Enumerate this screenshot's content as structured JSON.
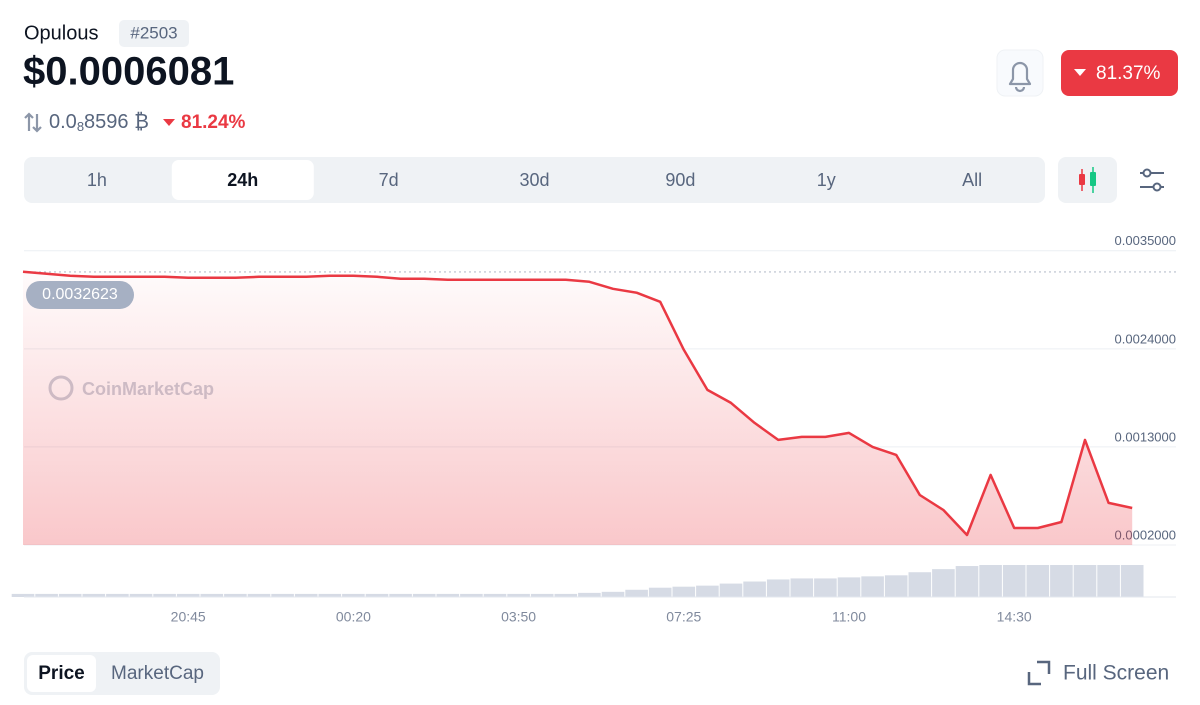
{
  "header": {
    "name": "Opulous",
    "rank": "#2503",
    "price": "$0.0006081",
    "btc_price": {
      "lead": "0.0",
      "zeros": "8",
      "digits": "8596",
      "unit": "₿"
    },
    "btc_change": "81.24%",
    "change_24h": "81.37%"
  },
  "tabs": [
    {
      "label": "1h",
      "active": false
    },
    {
      "label": "24h",
      "active": true
    },
    {
      "label": "7d",
      "active": false
    },
    {
      "label": "30d",
      "active": false
    },
    {
      "label": "90d",
      "active": false
    },
    {
      "label": "1y",
      "active": false
    },
    {
      "label": "All",
      "active": false
    }
  ],
  "chart_data": {
    "type": "line",
    "color": "#ea3943",
    "watermark": "CoinMarketCap",
    "categories": [
      null,
      null,
      null,
      null,
      null,
      null,
      null,
      "20:45",
      null,
      null,
      null,
      null,
      null,
      null,
      "00:20",
      null,
      null,
      null,
      null,
      null,
      null,
      "03:50",
      null,
      null,
      null,
      null,
      null,
      null,
      "07:25",
      null,
      null,
      null,
      null,
      null,
      null,
      "11:00",
      null,
      null,
      null,
      null,
      null,
      null,
      "14:30",
      null,
      null,
      null,
      null,
      null
    ],
    "values": [
      0.003264,
      0.003242,
      0.003219,
      0.003208,
      0.003208,
      0.003208,
      0.003208,
      0.003197,
      0.003197,
      0.003197,
      0.003208,
      0.003208,
      0.003208,
      0.003219,
      0.003219,
      0.003208,
      0.003186,
      0.003186,
      0.003175,
      0.003175,
      0.003175,
      0.003175,
      0.003175,
      0.003175,
      0.003152,
      0.003073,
      0.003029,
      0.002928,
      0.002389,
      0.00194,
      0.001794,
      0.001569,
      0.001379,
      0.001412,
      0.001412,
      0.001457,
      0.0013,
      0.00121,
      0.000761,
      0.000593,
      0.000312,
      0.000986,
      0.000391,
      0.000391,
      0.000458,
      0.001379,
      0.000672,
      0.000615
    ],
    "volume": [
      3,
      3,
      3,
      3,
      3,
      3,
      3,
      3,
      3,
      3,
      3,
      3,
      3,
      3,
      3,
      3,
      3,
      3,
      3,
      3,
      3,
      3,
      3,
      3,
      4,
      5,
      7,
      9,
      10,
      11,
      13,
      15,
      17,
      18,
      18,
      19,
      20,
      21,
      24,
      27,
      30,
      31,
      31,
      31,
      31,
      31,
      31,
      31
    ],
    "reference_value": 0.0032623,
    "ylim": [
      0.0002,
      0.0038
    ],
    "yticks": [
      {
        "value": 0.0035,
        "label": "0.0035000"
      },
      {
        "value": 0.0024,
        "label": "0.0024000"
      },
      {
        "value": 0.0013,
        "label": "0.0013000"
      },
      {
        "value": 0.0002,
        "label": "0.0002000"
      }
    ],
    "grid": true
  },
  "footer": {
    "toggles": [
      {
        "label": "Price",
        "active": true
      },
      {
        "label": "MarketCap",
        "active": false
      }
    ],
    "full_screen": "Full Screen"
  }
}
